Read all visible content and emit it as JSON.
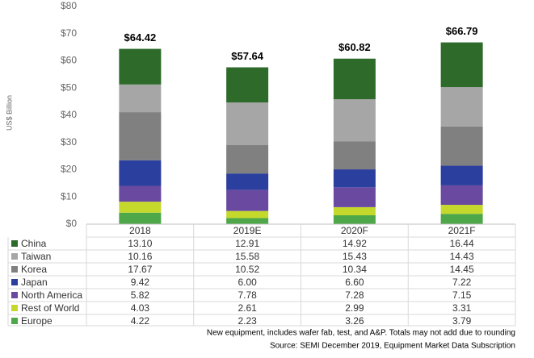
{
  "chart_data": {
    "type": "stacked_bar",
    "y_label": "US$ Billion",
    "categories": [
      "2018",
      "2019E",
      "2020F",
      "2021F"
    ],
    "series": [
      {
        "name": "China",
        "color": "#2e6b2a",
        "values": [
          13.1,
          12.91,
          14.92,
          16.44
        ],
        "value_labels": [
          "13.10",
          "12.91",
          "14.92",
          "16.44"
        ]
      },
      {
        "name": "Taiwan",
        "color": "#a6a6a6",
        "values": [
          10.16,
          15.58,
          15.43,
          14.43
        ],
        "value_labels": [
          "10.16",
          "15.58",
          "15.43",
          "14.43"
        ]
      },
      {
        "name": "Korea",
        "color": "#808080",
        "values": [
          17.67,
          10.52,
          10.34,
          14.45
        ],
        "value_labels": [
          "17.67",
          "10.52",
          "10.34",
          "14.45"
        ]
      },
      {
        "name": "Japan",
        "color": "#2a3f9e",
        "values": [
          9.42,
          6,
          6.6,
          7.22
        ],
        "value_labels": [
          "9.42",
          "6.00",
          "6.60",
          "7.22"
        ]
      },
      {
        "name": "North America",
        "color": "#6a4aa0",
        "values": [
          5.82,
          7.78,
          7.28,
          7.15
        ],
        "value_labels": [
          "5.82",
          "7.78",
          "7.28",
          "7.15"
        ]
      },
      {
        "name": "Rest of World",
        "color": "#c5d92d",
        "values": [
          4.03,
          2.61,
          2.99,
          3.31
        ],
        "value_labels": [
          "4.03",
          "2.61",
          "2.99",
          "3.31"
        ]
      },
      {
        "name": "Europe",
        "color": "#4ea84a",
        "values": [
          4.22,
          2.23,
          3.26,
          3.79
        ],
        "value_labels": [
          "4.22",
          "2.23",
          "3.26",
          "3.79"
        ]
      }
    ],
    "totals": [
      64.42,
      57.64,
      60.82,
      66.79
    ],
    "total_labels": [
      "$64.42",
      "$57.64",
      "$60.82",
      "$66.79"
    ],
    "ylim": [
      0,
      80
    ],
    "yticks": [
      {
        "value": 0,
        "label": "$0"
      },
      {
        "value": 10,
        "label": "$10"
      },
      {
        "value": 20,
        "label": "$20"
      },
      {
        "value": 30,
        "label": "$30"
      },
      {
        "value": 40,
        "label": "$40"
      },
      {
        "value": 50,
        "label": "$50"
      },
      {
        "value": 60,
        "label": "$60"
      },
      {
        "value": 70,
        "label": "$70"
      },
      {
        "value": 80,
        "label": "$80"
      }
    ],
    "notes": [
      "New equipment, includes wafer fab, test, and A&P. Totals may not add due to rounding",
      "Source: SEMI December 2019, Equipment Market Data Subscription"
    ]
  }
}
